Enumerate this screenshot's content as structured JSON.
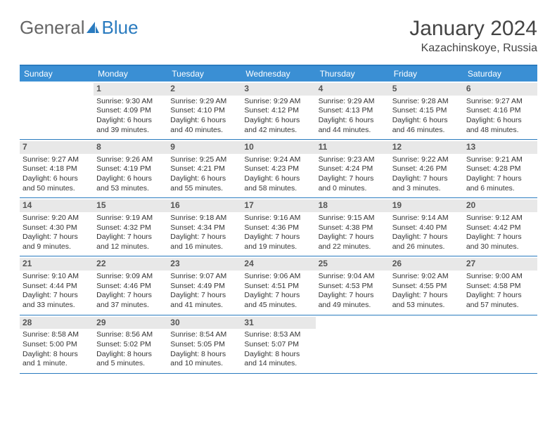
{
  "brand": {
    "part1": "General",
    "part2": "Blue"
  },
  "title": "January 2024",
  "location": "Kazachinskoye, Russia",
  "colors": {
    "accent": "#3a8fd4",
    "border": "#2a7bbf",
    "daybg": "#e8e8e8",
    "text": "#333333"
  },
  "day_names": [
    "Sunday",
    "Monday",
    "Tuesday",
    "Wednesday",
    "Thursday",
    "Friday",
    "Saturday"
  ],
  "weeks": [
    [
      null,
      {
        "n": "1",
        "sr": "Sunrise: 9:30 AM",
        "ss": "Sunset: 4:09 PM",
        "d1": "Daylight: 6 hours",
        "d2": "and 39 minutes."
      },
      {
        "n": "2",
        "sr": "Sunrise: 9:29 AM",
        "ss": "Sunset: 4:10 PM",
        "d1": "Daylight: 6 hours",
        "d2": "and 40 minutes."
      },
      {
        "n": "3",
        "sr": "Sunrise: 9:29 AM",
        "ss": "Sunset: 4:12 PM",
        "d1": "Daylight: 6 hours",
        "d2": "and 42 minutes."
      },
      {
        "n": "4",
        "sr": "Sunrise: 9:29 AM",
        "ss": "Sunset: 4:13 PM",
        "d1": "Daylight: 6 hours",
        "d2": "and 44 minutes."
      },
      {
        "n": "5",
        "sr": "Sunrise: 9:28 AM",
        "ss": "Sunset: 4:15 PM",
        "d1": "Daylight: 6 hours",
        "d2": "and 46 minutes."
      },
      {
        "n": "6",
        "sr": "Sunrise: 9:27 AM",
        "ss": "Sunset: 4:16 PM",
        "d1": "Daylight: 6 hours",
        "d2": "and 48 minutes."
      }
    ],
    [
      {
        "n": "7",
        "sr": "Sunrise: 9:27 AM",
        "ss": "Sunset: 4:18 PM",
        "d1": "Daylight: 6 hours",
        "d2": "and 50 minutes."
      },
      {
        "n": "8",
        "sr": "Sunrise: 9:26 AM",
        "ss": "Sunset: 4:19 PM",
        "d1": "Daylight: 6 hours",
        "d2": "and 53 minutes."
      },
      {
        "n": "9",
        "sr": "Sunrise: 9:25 AM",
        "ss": "Sunset: 4:21 PM",
        "d1": "Daylight: 6 hours",
        "d2": "and 55 minutes."
      },
      {
        "n": "10",
        "sr": "Sunrise: 9:24 AM",
        "ss": "Sunset: 4:23 PM",
        "d1": "Daylight: 6 hours",
        "d2": "and 58 minutes."
      },
      {
        "n": "11",
        "sr": "Sunrise: 9:23 AM",
        "ss": "Sunset: 4:24 PM",
        "d1": "Daylight: 7 hours",
        "d2": "and 0 minutes."
      },
      {
        "n": "12",
        "sr": "Sunrise: 9:22 AM",
        "ss": "Sunset: 4:26 PM",
        "d1": "Daylight: 7 hours",
        "d2": "and 3 minutes."
      },
      {
        "n": "13",
        "sr": "Sunrise: 9:21 AM",
        "ss": "Sunset: 4:28 PM",
        "d1": "Daylight: 7 hours",
        "d2": "and 6 minutes."
      }
    ],
    [
      {
        "n": "14",
        "sr": "Sunrise: 9:20 AM",
        "ss": "Sunset: 4:30 PM",
        "d1": "Daylight: 7 hours",
        "d2": "and 9 minutes."
      },
      {
        "n": "15",
        "sr": "Sunrise: 9:19 AM",
        "ss": "Sunset: 4:32 PM",
        "d1": "Daylight: 7 hours",
        "d2": "and 12 minutes."
      },
      {
        "n": "16",
        "sr": "Sunrise: 9:18 AM",
        "ss": "Sunset: 4:34 PM",
        "d1": "Daylight: 7 hours",
        "d2": "and 16 minutes."
      },
      {
        "n": "17",
        "sr": "Sunrise: 9:16 AM",
        "ss": "Sunset: 4:36 PM",
        "d1": "Daylight: 7 hours",
        "d2": "and 19 minutes."
      },
      {
        "n": "18",
        "sr": "Sunrise: 9:15 AM",
        "ss": "Sunset: 4:38 PM",
        "d1": "Daylight: 7 hours",
        "d2": "and 22 minutes."
      },
      {
        "n": "19",
        "sr": "Sunrise: 9:14 AM",
        "ss": "Sunset: 4:40 PM",
        "d1": "Daylight: 7 hours",
        "d2": "and 26 minutes."
      },
      {
        "n": "20",
        "sr": "Sunrise: 9:12 AM",
        "ss": "Sunset: 4:42 PM",
        "d1": "Daylight: 7 hours",
        "d2": "and 30 minutes."
      }
    ],
    [
      {
        "n": "21",
        "sr": "Sunrise: 9:10 AM",
        "ss": "Sunset: 4:44 PM",
        "d1": "Daylight: 7 hours",
        "d2": "and 33 minutes."
      },
      {
        "n": "22",
        "sr": "Sunrise: 9:09 AM",
        "ss": "Sunset: 4:46 PM",
        "d1": "Daylight: 7 hours",
        "d2": "and 37 minutes."
      },
      {
        "n": "23",
        "sr": "Sunrise: 9:07 AM",
        "ss": "Sunset: 4:49 PM",
        "d1": "Daylight: 7 hours",
        "d2": "and 41 minutes."
      },
      {
        "n": "24",
        "sr": "Sunrise: 9:06 AM",
        "ss": "Sunset: 4:51 PM",
        "d1": "Daylight: 7 hours",
        "d2": "and 45 minutes."
      },
      {
        "n": "25",
        "sr": "Sunrise: 9:04 AM",
        "ss": "Sunset: 4:53 PM",
        "d1": "Daylight: 7 hours",
        "d2": "and 49 minutes."
      },
      {
        "n": "26",
        "sr": "Sunrise: 9:02 AM",
        "ss": "Sunset: 4:55 PM",
        "d1": "Daylight: 7 hours",
        "d2": "and 53 minutes."
      },
      {
        "n": "27",
        "sr": "Sunrise: 9:00 AM",
        "ss": "Sunset: 4:58 PM",
        "d1": "Daylight: 7 hours",
        "d2": "and 57 minutes."
      }
    ],
    [
      {
        "n": "28",
        "sr": "Sunrise: 8:58 AM",
        "ss": "Sunset: 5:00 PM",
        "d1": "Daylight: 8 hours",
        "d2": "and 1 minute."
      },
      {
        "n": "29",
        "sr": "Sunrise: 8:56 AM",
        "ss": "Sunset: 5:02 PM",
        "d1": "Daylight: 8 hours",
        "d2": "and 5 minutes."
      },
      {
        "n": "30",
        "sr": "Sunrise: 8:54 AM",
        "ss": "Sunset: 5:05 PM",
        "d1": "Daylight: 8 hours",
        "d2": "and 10 minutes."
      },
      {
        "n": "31",
        "sr": "Sunrise: 8:53 AM",
        "ss": "Sunset: 5:07 PM",
        "d1": "Daylight: 8 hours",
        "d2": "and 14 minutes."
      },
      null,
      null,
      null
    ]
  ]
}
